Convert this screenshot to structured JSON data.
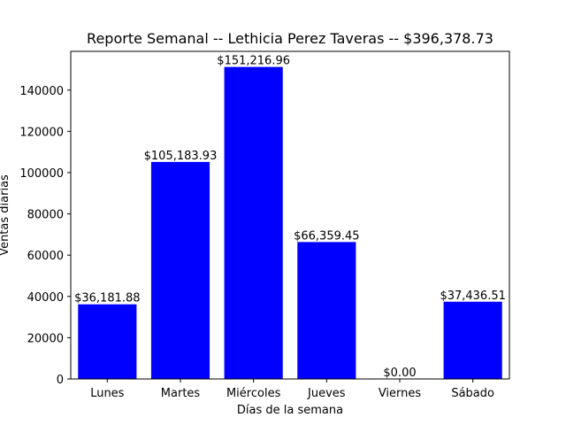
{
  "chart_data": {
    "type": "bar",
    "title": "Reporte Semanal -- Lethicia Perez Taveras -- $396,378.73",
    "xlabel": "Días de la semana",
    "ylabel": "Ventas diarias",
    "categories": [
      "Lunes",
      "Martes",
      "Miércoles",
      "Jueves",
      "Viernes",
      "Sábado"
    ],
    "values": [
      36181.88,
      105183.93,
      151216.96,
      66359.45,
      0.0,
      37436.51
    ],
    "value_labels": [
      "$36,181.88",
      "$105,183.93",
      "$151,216.96",
      "$66,359.45",
      "$0.00",
      "$37,436.51"
    ],
    "ylim": [
      0,
      158778
    ],
    "yticks": [
      0,
      20000,
      40000,
      60000,
      80000,
      100000,
      120000,
      140000
    ],
    "grid": false,
    "bar_color": "#0000ff"
  }
}
